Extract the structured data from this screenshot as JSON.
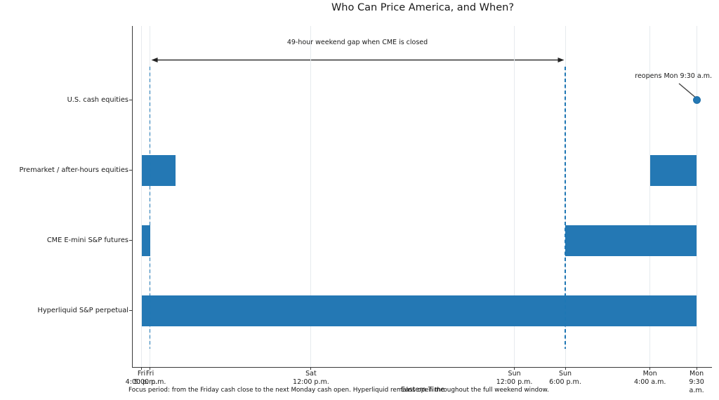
{
  "figure": {
    "title": "Who Can Price America, and When?",
    "xlabel": "Eastern Time",
    "footnote": "Focus period: from the Friday cash close to the next Monday cash open. Hyperliquid remains open throughout the full weekend window."
  },
  "annotations": {
    "gap": "49-hour weekend gap when CME is closed",
    "reopen": "reopens Mon 9:30 a.m."
  },
  "colors": {
    "bar": "#2478b4",
    "marker_dot": "#2478b4",
    "dashed_line": "#1f77b4",
    "gridline": "#e6eaee",
    "axis": "#3a3a3a",
    "text": "#1a1a1a"
  },
  "chart_data": {
    "type": "bar",
    "subtype": "horizontal-gantt-timeline",
    "title": "Who Can Price America, and When?",
    "xlabel": "Eastern Time",
    "x_unit": "hours after Fri 4:00 p.m. ET",
    "xlim": [
      -1.1,
      67.3
    ],
    "grid": "vertical-at-ticks",
    "legend": "none",
    "x_ticks": [
      {
        "hour": 0,
        "day": "Fri",
        "time": "4:00 p.m."
      },
      {
        "hour": 1,
        "day": "Fri",
        "time": "5:00 p.m."
      },
      {
        "hour": 20,
        "day": "Sat",
        "time": "12:00 p.m."
      },
      {
        "hour": 44,
        "day": "Sun",
        "time": "12:00 p.m."
      },
      {
        "hour": 50,
        "day": "Sun",
        "time": "6:00 p.m."
      },
      {
        "hour": 60,
        "day": "Mon",
        "time": "4:00 a.m."
      },
      {
        "hour": 65.5,
        "day": "Mon",
        "time": "9:30 a.m."
      }
    ],
    "rows": [
      {
        "label": "U.S. cash equities",
        "segments": [],
        "marker_hour": 65.5
      },
      {
        "label": "Premarket / after-hours equities",
        "segments": [
          [
            0,
            4
          ],
          [
            60,
            65.5
          ]
        ],
        "marker_hour": null
      },
      {
        "label": "CME E-mini S&P futures",
        "segments": [
          [
            0,
            1
          ],
          [
            50,
            65.5
          ]
        ],
        "marker_hour": null
      },
      {
        "label": "Hyperliquid S&P perpetual",
        "segments": [
          [
            0,
            65.5
          ]
        ],
        "marker_hour": null
      }
    ],
    "dashed_reference_hours": [
      1,
      50
    ],
    "gap_annotation": {
      "text": "49-hour weekend gap when CME is closed",
      "from_hour": 1,
      "to_hour": 50
    },
    "marker_annotation": {
      "text": "reopens Mon 9:30 a.m.",
      "row": "U.S. cash equities",
      "hour": 65.5
    }
  }
}
